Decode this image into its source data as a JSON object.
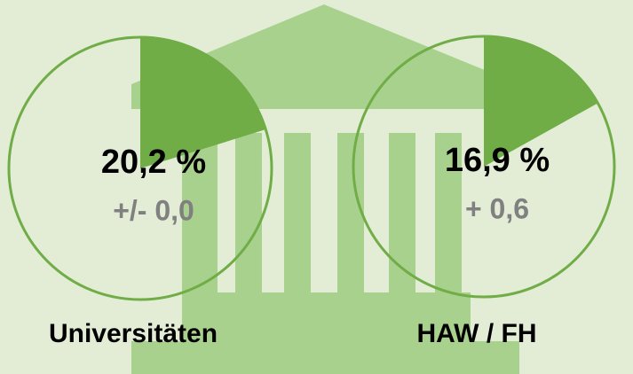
{
  "chart_data": [
    {
      "type": "pie",
      "title": "Universitäten",
      "values": [
        20.2
      ],
      "value_labels": [
        "20,2 %"
      ],
      "annotation": "+/- 0,0",
      "color": "#70ad47"
    },
    {
      "type": "pie",
      "title": "HAW / FH",
      "values": [
        16.9
      ],
      "value_labels": [
        "16,9 %"
      ],
      "annotation": "+ 0,6",
      "color": "#70ad47"
    }
  ]
}
